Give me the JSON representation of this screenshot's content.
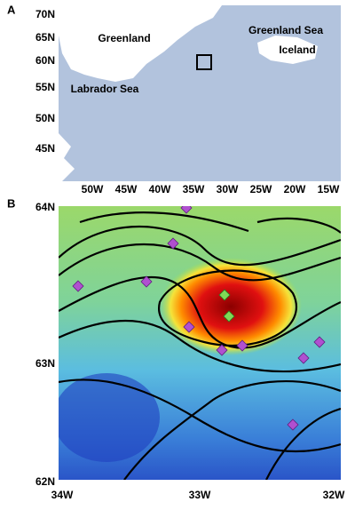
{
  "panels": [
    {
      "label": "A",
      "lat_ticks": [
        "70N",
        "65N",
        "60N",
        "55N",
        "50N",
        "45N"
      ],
      "lon_ticks": [
        "50W",
        "45W",
        "40W",
        "35W",
        "30W",
        "25W",
        "20W",
        "15W"
      ],
      "places": [
        "Greenland",
        "Greenland Sea",
        "Iceland",
        "Labrador Sea"
      ]
    },
    {
      "label": "B",
      "lat_ticks": [
        "64N",
        "63N",
        "62N"
      ],
      "lon_ticks": [
        "34W",
        "33W",
        "32W"
      ]
    }
  ]
}
